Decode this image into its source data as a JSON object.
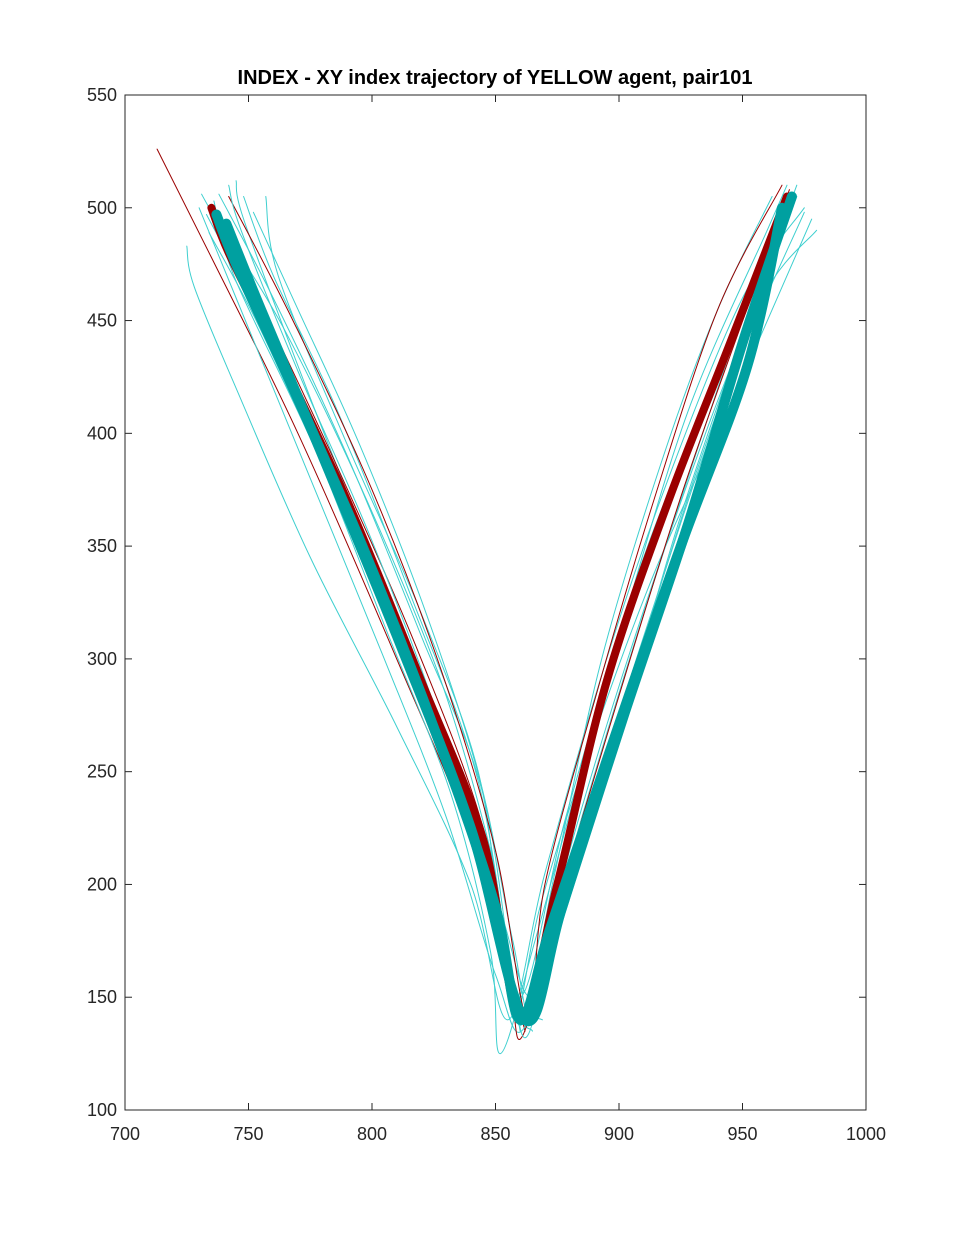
{
  "chart_data": {
    "type": "line",
    "title": "INDEX - XY index trajectory of YELLOW agent, pair101",
    "xlabel": "",
    "ylabel": "",
    "xlim": [
      700,
      1000
    ],
    "ylim": [
      100,
      550
    ],
    "x_ticks": [
      700,
      750,
      800,
      850,
      900,
      950,
      1000
    ],
    "y_ticks": [
      100,
      150,
      200,
      250,
      300,
      350,
      400,
      450,
      500,
      550
    ],
    "x_tick_labels": [
      "700",
      "750",
      "800",
      "850",
      "900",
      "950",
      "1000"
    ],
    "y_tick_labels": [
      "100",
      "150",
      "200",
      "250",
      "300",
      "350",
      "400",
      "450",
      "500",
      "550"
    ],
    "grid": false,
    "legend": "none",
    "colors": {
      "thin_cyan": "#3ecfcf",
      "thick_cyan": "#00a0a0",
      "dark_red": "#9b0000"
    },
    "series": [
      {
        "style": "thick",
        "color": "#9b0000",
        "points": [
          [
            735,
            500
          ],
          [
            742,
            480
          ],
          [
            760,
            440
          ],
          [
            790,
            370
          ],
          [
            820,
            290
          ],
          [
            845,
            220
          ],
          [
            860,
            140
          ],
          [
            875,
            200
          ],
          [
            895,
            290
          ],
          [
            920,
            370
          ],
          [
            945,
            440
          ],
          [
            968,
            505
          ]
        ]
      },
      {
        "style": "thick",
        "color": "#00a0a0",
        "points": [
          [
            737,
            497
          ],
          [
            745,
            475
          ],
          [
            768,
            420
          ],
          [
            798,
            345
          ],
          [
            830,
            255
          ],
          [
            850,
            190
          ],
          [
            860,
            140
          ],
          [
            872,
            180
          ],
          [
            895,
            255
          ],
          [
            925,
            350
          ],
          [
            952,
            430
          ],
          [
            966,
            500
          ]
        ]
      },
      {
        "style": "thick",
        "color": "#00a0a0",
        "points": [
          [
            741,
            493
          ],
          [
            755,
            455
          ],
          [
            780,
            390
          ],
          [
            812,
            305
          ],
          [
            840,
            225
          ],
          [
            862,
            140
          ],
          [
            877,
            190
          ],
          [
            902,
            275
          ],
          [
            928,
            360
          ],
          [
            950,
            440
          ],
          [
            970,
            505
          ]
        ]
      },
      {
        "style": "thin",
        "color": "#9b0000",
        "points": [
          [
            713,
            526
          ],
          [
            735,
            478
          ],
          [
            770,
            400
          ],
          [
            810,
            300
          ],
          [
            840,
            220
          ],
          [
            862,
            135
          ]
        ]
      },
      {
        "style": "thin",
        "color": "#3ecfcf",
        "points": [
          [
            745,
            512
          ],
          [
            748,
            495
          ],
          [
            770,
            430
          ],
          [
            800,
            345
          ],
          [
            830,
            255
          ],
          [
            852,
            180
          ],
          [
            860,
            135
          ]
        ]
      },
      {
        "style": "thin",
        "color": "#3ecfcf",
        "points": [
          [
            725,
            483
          ],
          [
            728,
            465
          ],
          [
            745,
            420
          ],
          [
            775,
            345
          ],
          [
            810,
            270
          ],
          [
            840,
            200
          ],
          [
            855,
            140
          ],
          [
            870,
            205
          ],
          [
            895,
            300
          ],
          [
            920,
            380
          ],
          [
            950,
            460
          ],
          [
            975,
            500
          ]
        ]
      },
      {
        "style": "thin",
        "color": "#3ecfcf",
        "points": [
          [
            738,
            506
          ],
          [
            760,
            460
          ],
          [
            790,
            390
          ],
          [
            820,
            310
          ],
          [
            845,
            240
          ],
          [
            858,
            150
          ],
          [
            865,
            135
          ]
        ]
      },
      {
        "style": "thin",
        "color": "#3ecfcf",
        "points": [
          [
            748,
            505
          ],
          [
            760,
            470
          ],
          [
            786,
            410
          ],
          [
            815,
            330
          ],
          [
            842,
            250
          ],
          [
            855,
            170
          ],
          [
            862,
            140
          ],
          [
            885,
            230
          ],
          [
            910,
            320
          ],
          [
            940,
            420
          ],
          [
            965,
            500
          ]
        ]
      },
      {
        "style": "thin",
        "color": "#3ecfcf",
        "points": [
          [
            730,
            500
          ],
          [
            745,
            460
          ],
          [
            775,
            380
          ],
          [
            805,
            300
          ],
          [
            830,
            230
          ],
          [
            850,
            160
          ],
          [
            862,
            137
          ],
          [
            880,
            215
          ],
          [
            905,
            305
          ],
          [
            935,
            400
          ],
          [
            960,
            470
          ],
          [
            972,
            505
          ]
        ]
      },
      {
        "style": "thin",
        "color": "#3ecfcf",
        "points": [
          [
            739,
            492
          ],
          [
            765,
            445
          ],
          [
            798,
            370
          ],
          [
            828,
            290
          ],
          [
            848,
            215
          ],
          [
            860,
            150
          ],
          [
            878,
            228
          ],
          [
            900,
            310
          ],
          [
            928,
            410
          ],
          [
            960,
            490
          ],
          [
            968,
            510
          ]
        ]
      },
      {
        "style": "thin",
        "color": "#3ecfcf",
        "points": [
          [
            757,
            505
          ],
          [
            762,
            470
          ],
          [
            788,
            400
          ],
          [
            820,
            320
          ],
          [
            843,
            250
          ],
          [
            852,
            180
          ],
          [
            858,
            140
          ],
          [
            868,
            190
          ],
          [
            888,
            260
          ],
          [
            915,
            340
          ],
          [
            948,
            420
          ],
          [
            978,
            495
          ]
        ]
      },
      {
        "style": "thin",
        "color": "#3ecfcf",
        "points": [
          [
            733,
            497
          ],
          [
            755,
            450
          ],
          [
            780,
            385
          ],
          [
            805,
            315
          ],
          [
            832,
            240
          ],
          [
            848,
            170
          ],
          [
            852,
            125
          ],
          [
            866,
            175
          ],
          [
            886,
            255
          ],
          [
            910,
            345
          ],
          [
            945,
            440
          ],
          [
            968,
            500
          ]
        ]
      },
      {
        "style": "thin",
        "color": "#3ecfcf",
        "points": [
          [
            736,
            503
          ],
          [
            744,
            470
          ],
          [
            772,
            405
          ],
          [
            803,
            330
          ],
          [
            828,
            265
          ],
          [
            846,
            200
          ],
          [
            860,
            140
          ],
          [
            874,
            205
          ],
          [
            893,
            300
          ],
          [
            918,
            390
          ],
          [
            940,
            455
          ],
          [
            962,
            505
          ]
        ]
      },
      {
        "style": "thin",
        "color": "#3ecfcf",
        "points": [
          [
            752,
            498
          ],
          [
            770,
            455
          ],
          [
            795,
            395
          ],
          [
            822,
            320
          ],
          [
            844,
            245
          ],
          [
            857,
            175
          ],
          [
            866,
            140
          ],
          [
            882,
            210
          ],
          [
            905,
            290
          ],
          [
            932,
            385
          ],
          [
            958,
            460
          ],
          [
            980,
            490
          ]
        ]
      },
      {
        "style": "thin",
        "color": "#3ecfcf",
        "points": [
          [
            731,
            506
          ],
          [
            751,
            465
          ],
          [
            779,
            395
          ],
          [
            806,
            325
          ],
          [
            836,
            250
          ],
          [
            853,
            185
          ],
          [
            864,
            150
          ],
          [
            876,
            180
          ],
          [
            898,
            260
          ],
          [
            924,
            360
          ],
          [
            952,
            450
          ],
          [
            972,
            510
          ]
        ]
      },
      {
        "style": "thin",
        "color": "#9b0000",
        "points": [
          [
            742,
            505
          ],
          [
            768,
            450
          ],
          [
            800,
            375
          ],
          [
            828,
            295
          ],
          [
            850,
            215
          ],
          [
            863,
            140
          ],
          [
            870,
            200
          ],
          [
            891,
            285
          ],
          [
            914,
            370
          ],
          [
            940,
            455
          ],
          [
            966,
            510
          ]
        ]
      },
      {
        "style": "thin",
        "color": "#9b0000",
        "points": [
          [
            738,
            495
          ],
          [
            756,
            455
          ],
          [
            786,
            385
          ],
          [
            818,
            305
          ],
          [
            845,
            225
          ],
          [
            856,
            155
          ],
          [
            861,
            133
          ],
          [
            876,
            195
          ],
          [
            899,
            280
          ],
          [
            926,
            375
          ],
          [
            955,
            465
          ],
          [
            969,
            508
          ]
        ]
      },
      {
        "style": "thin",
        "color": "#3ecfcf",
        "points": [
          [
            742,
            510
          ],
          [
            747,
            490
          ],
          [
            771,
            425
          ],
          [
            799,
            355
          ],
          [
            825,
            280
          ],
          [
            845,
            210
          ],
          [
            857,
            150
          ],
          [
            869,
            140
          ]
        ]
      },
      {
        "style": "thin",
        "color": "#3ecfcf",
        "points": [
          [
            734,
            489
          ],
          [
            754,
            448
          ],
          [
            784,
            376
          ],
          [
            811,
            310
          ],
          [
            838,
            235
          ],
          [
            855,
            168
          ],
          [
            862,
            132
          ],
          [
            872,
            170
          ],
          [
            890,
            240
          ],
          [
            913,
            320
          ],
          [
            944,
            420
          ],
          [
            975,
            498
          ]
        ]
      }
    ]
  }
}
